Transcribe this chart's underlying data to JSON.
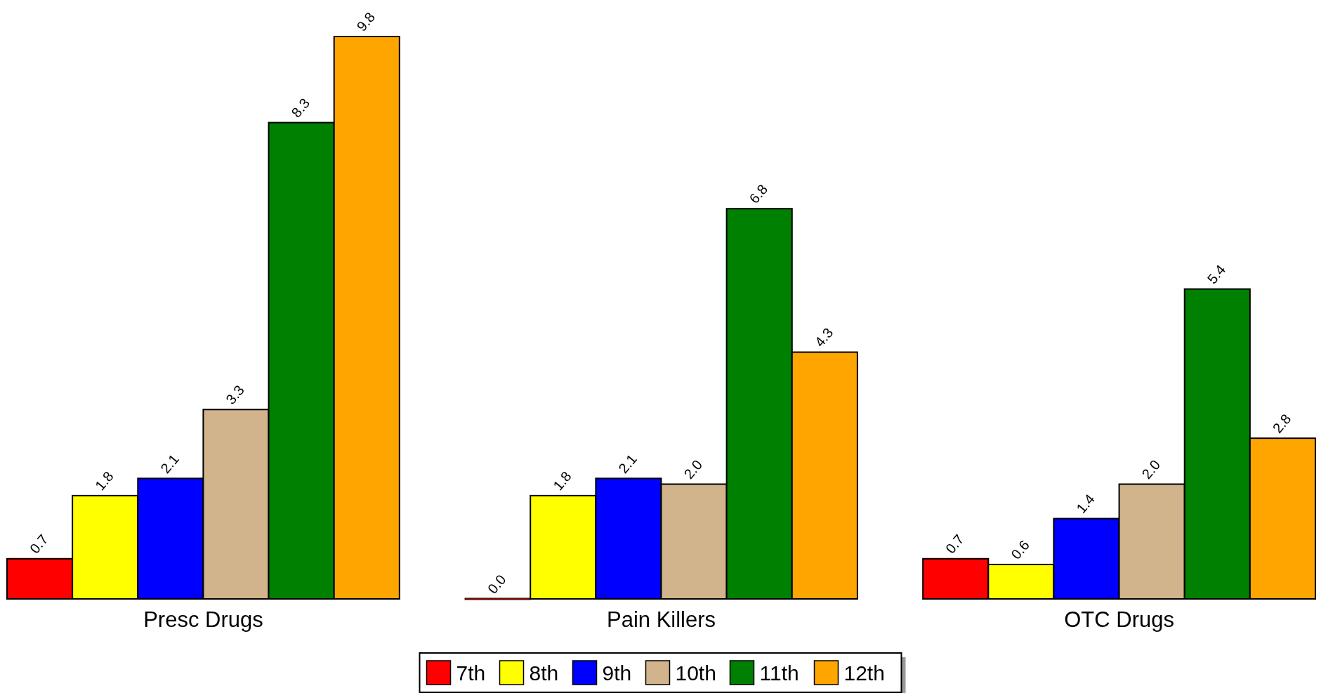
{
  "chart_data": {
    "type": "bar",
    "categories": [
      "Presc Drugs",
      "Pain Killers",
      "OTC Drugs"
    ],
    "series": [
      {
        "name": "7th",
        "color": "#ff0000",
        "values": [
          0.7,
          0.0,
          0.7
        ],
        "value_labels": [
          "0.7",
          "0.0",
          "0.7"
        ]
      },
      {
        "name": "8th",
        "color": "#ffff00",
        "values": [
          1.8,
          1.8,
          0.6
        ],
        "value_labels": [
          "1.8",
          "1.8",
          "0.6"
        ]
      },
      {
        "name": "9th",
        "color": "#0000ff",
        "values": [
          2.1,
          2.1,
          1.4
        ],
        "value_labels": [
          "2.1",
          "2.1",
          "1.4"
        ]
      },
      {
        "name": "10th",
        "color": "#d2b48c",
        "values": [
          3.3,
          2.0,
          2.0
        ],
        "value_labels": [
          "3.3",
          "2.0",
          "2.0"
        ]
      },
      {
        "name": "11th",
        "color": "#008000",
        "values": [
          8.3,
          6.8,
          5.4
        ],
        "value_labels": [
          "8.3",
          "6.8",
          "5.4"
        ]
      },
      {
        "name": "12th",
        "color": "#ffa500",
        "values": [
          9.8,
          4.3,
          2.8
        ],
        "value_labels": [
          "9.8",
          "4.3",
          "2.8"
        ]
      }
    ],
    "legend": "bottom"
  }
}
